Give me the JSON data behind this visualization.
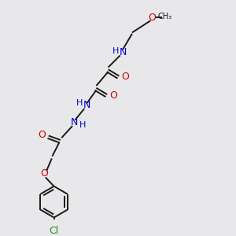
{
  "bg_color": "#e8e8ea",
  "bond_color": "#1a1a1a",
  "N_color": "#0000cc",
  "O_color": "#cc0000",
  "Cl_color": "#228B22",
  "line_width": 1.4,
  "font_size": 8.5,
  "xlim": [
    0,
    10
  ],
  "ylim": [
    0,
    10
  ]
}
